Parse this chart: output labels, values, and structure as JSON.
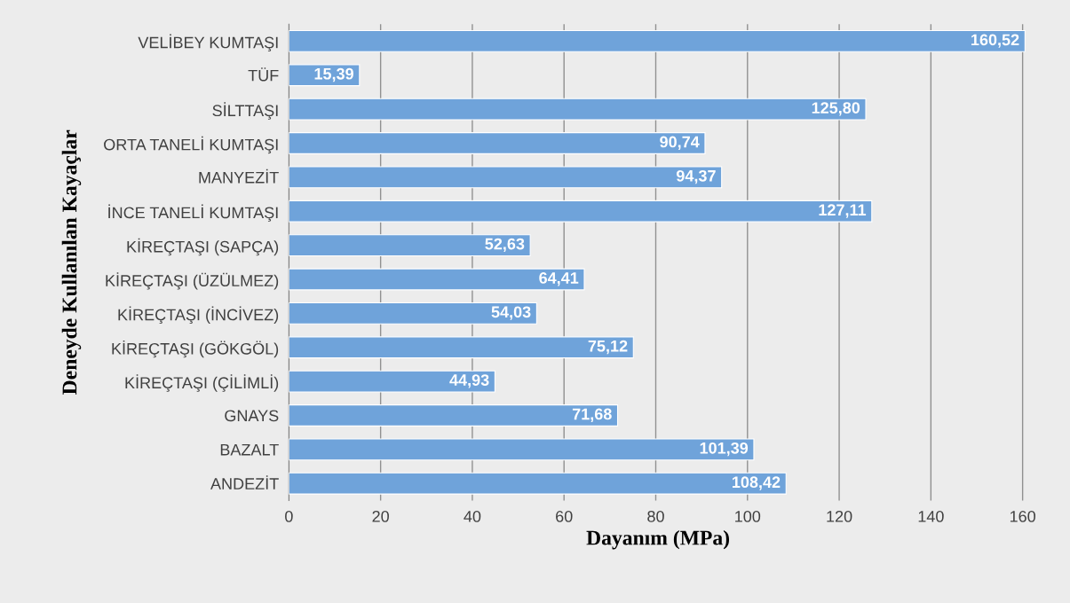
{
  "chart_data": {
    "type": "bar",
    "orientation": "horizontal",
    "xlabel": "Dayanım (MPa)",
    "ylabel": "Deneyde Kullanılan Kayaçlar",
    "categories": [
      "VELİBEY KUMTAŞI",
      "TÜF",
      "SİLTTAŞI",
      "ORTA TANELİ KUMTAŞI",
      "MANYEZİT",
      "İNCE TANELİ KUMTAŞI",
      "KİREÇTAŞI (SAPÇA)",
      "KİREÇTAŞI (ÜZÜLMEZ)",
      "KİREÇTAŞI (İNCİVEZ)",
      "KİREÇTAŞI (GÖKGÖL)",
      "KİREÇTAŞI (ÇİLİMLİ)",
      "GNAYS",
      "BAZALT",
      "ANDEZİT"
    ],
    "values": [
      160.52,
      15.39,
      125.8,
      90.74,
      94.37,
      127.11,
      52.63,
      64.41,
      54.03,
      75.12,
      44.93,
      71.68,
      101.39,
      108.42
    ],
    "value_labels": [
      "160,52",
      "15,39",
      "125,80",
      "90,74",
      "94,37",
      "127,11",
      "52,63",
      "64,41",
      "54,03",
      "75,12",
      "44,93",
      "71,68",
      "101,39",
      "108,42"
    ],
    "color": "#6fa3da",
    "xlim": [
      0,
      161
    ],
    "xticks": [
      0,
      20,
      40,
      60,
      80,
      100,
      120,
      140,
      160
    ],
    "grid": "x"
  }
}
